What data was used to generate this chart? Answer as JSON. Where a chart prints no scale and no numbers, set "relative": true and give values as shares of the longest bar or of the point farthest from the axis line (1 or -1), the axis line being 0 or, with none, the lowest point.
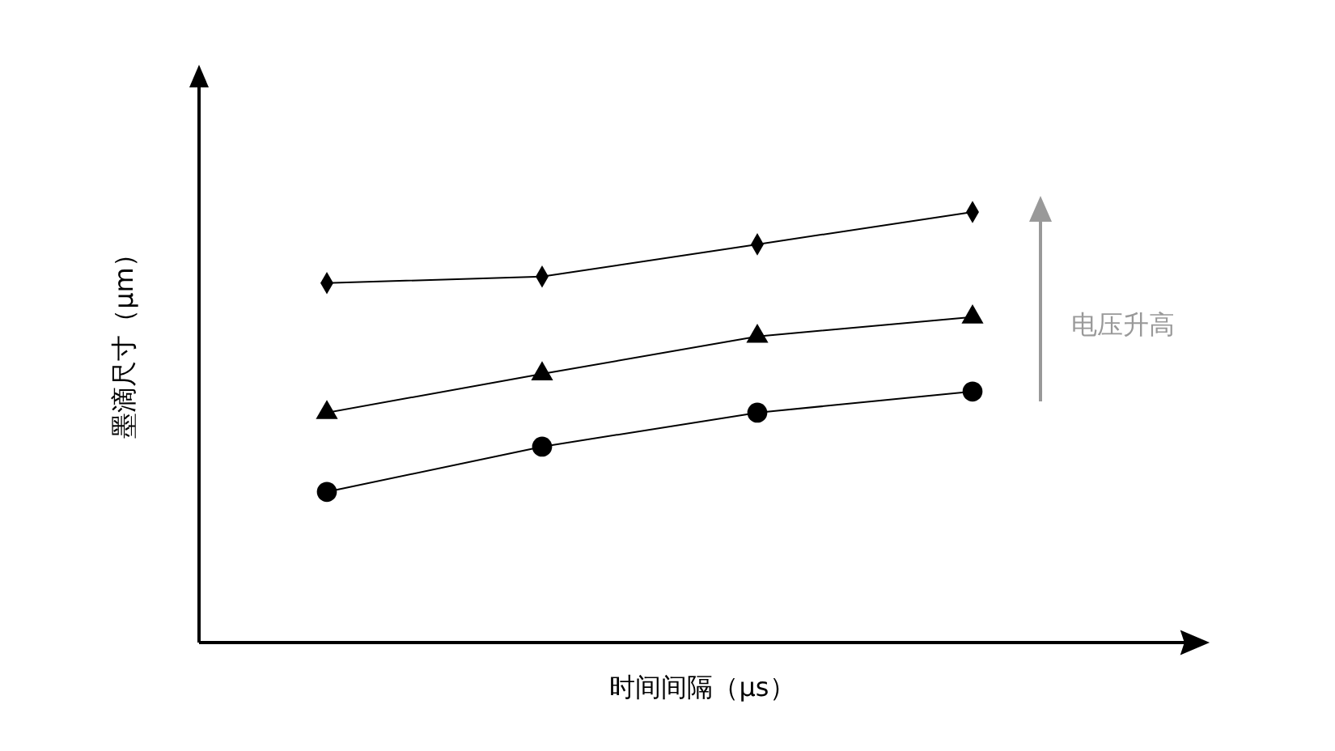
{
  "chart_data": {
    "type": "line",
    "relative": true,
    "xlabel": "时间间隔（μs）",
    "ylabel": "墨滴尺寸（μm）",
    "categories": [
      null,
      null,
      null,
      null
    ],
    "line_style": "solid",
    "annotations": [
      "电压升高"
    ],
    "series": [
      {
        "color": "#000000",
        "marker": "diamond",
        "values": [
          0.835,
          0.85,
          0.925,
          1
        ]
      },
      {
        "color": "#000000",
        "marker": "triangle",
        "values": [
          0.534,
          0.624,
          0.711,
          0.756
        ]
      },
      {
        "color": "#000000",
        "marker": "circle",
        "values": [
          0.35,
          0.455,
          0.534,
          0.583
        ]
      }
    ]
  }
}
